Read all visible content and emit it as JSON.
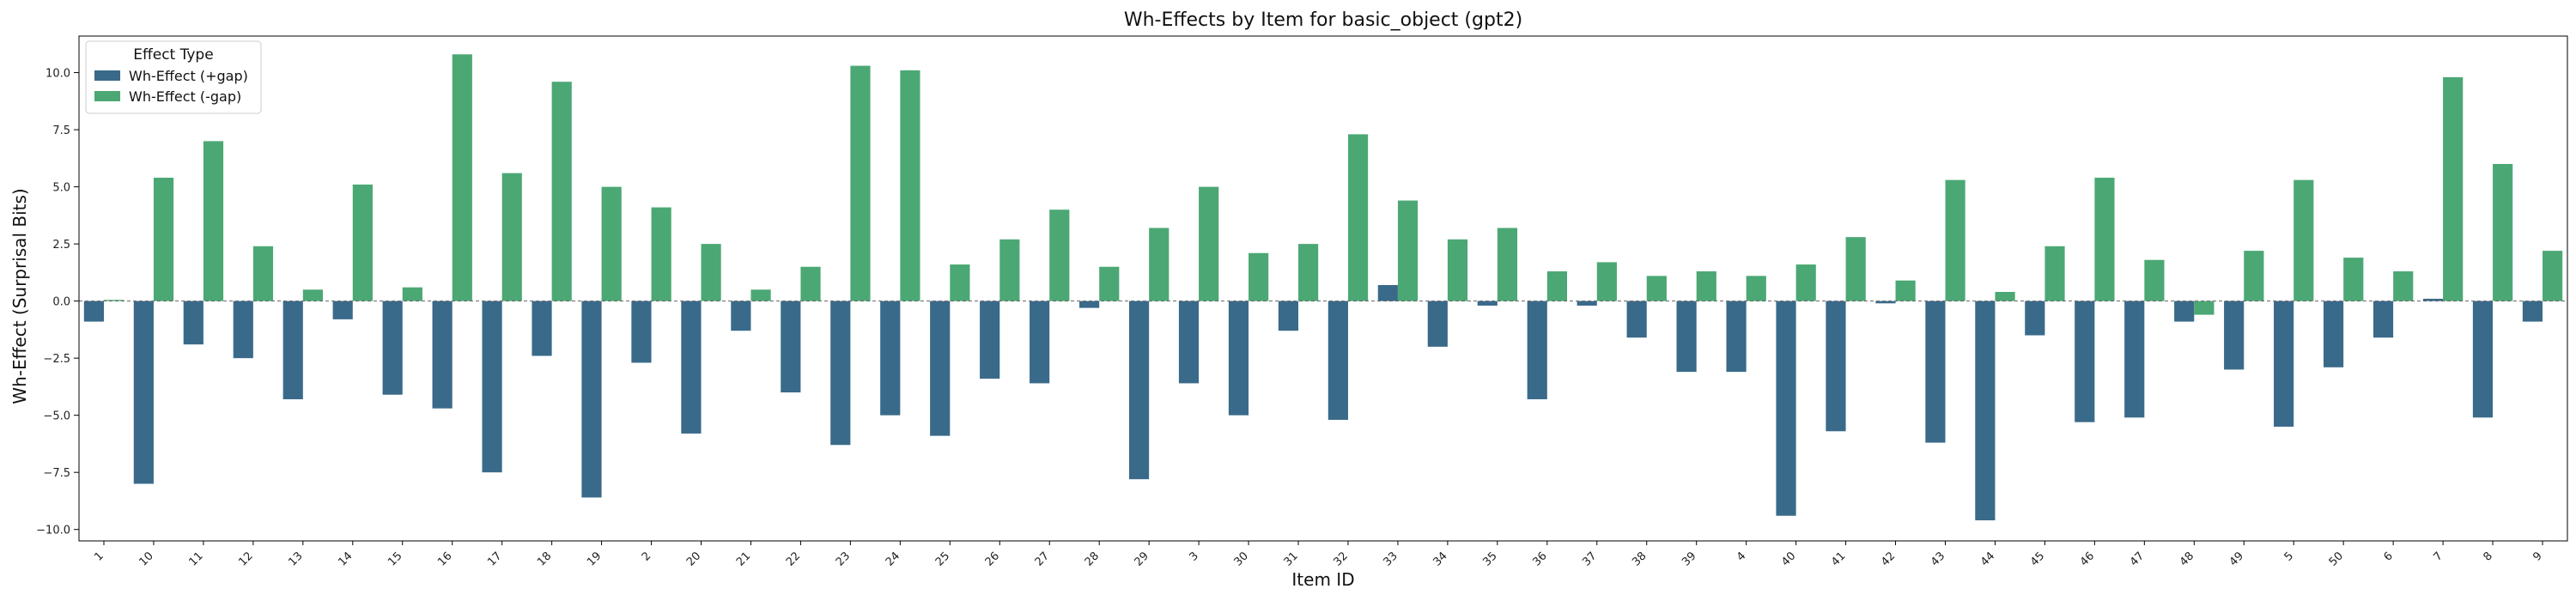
{
  "chart_data": {
    "type": "bar",
    "title": "Wh-Effects by Item for basic_object (gpt2)",
    "xlabel": "Item ID",
    "ylabel": "Wh-Effect (Surprisal Bits)",
    "ylim": [
      -10.5,
      11.6
    ],
    "yticks": [
      -10.0,
      -7.5,
      -5.0,
      -2.5,
      0.0,
      2.5,
      5.0,
      7.5,
      10.0
    ],
    "ytick_labels": [
      "−10.0",
      "−7.5",
      "−5.0",
      "−2.5",
      "0.0",
      "2.5",
      "5.0",
      "7.5",
      "10.0"
    ],
    "grid": false,
    "zero_line": "dashed",
    "legend": {
      "title": "Effect Type",
      "placement": "top-left"
    },
    "categories": [
      "1",
      "10",
      "11",
      "12",
      "13",
      "14",
      "15",
      "16",
      "17",
      "18",
      "19",
      "2",
      "20",
      "21",
      "22",
      "23",
      "24",
      "25",
      "26",
      "27",
      "28",
      "29",
      "3",
      "30",
      "31",
      "32",
      "33",
      "34",
      "35",
      "36",
      "37",
      "38",
      "39",
      "4",
      "40",
      "41",
      "42",
      "43",
      "44",
      "45",
      "46",
      "47",
      "48",
      "49",
      "5",
      "50",
      "6",
      "7",
      "8",
      "9"
    ],
    "series": [
      {
        "name": "Wh-Effect (+gap)",
        "color": "#3a6a8a",
        "values": [
          -0.9,
          -8.0,
          -1.9,
          -2.5,
          -4.3,
          -0.8,
          -4.1,
          -4.7,
          -7.5,
          -2.4,
          -8.6,
          -2.7,
          -5.8,
          -1.3,
          -4.0,
          -6.3,
          -5.0,
          -5.9,
          -3.4,
          -3.6,
          -0.3,
          -7.8,
          -3.6,
          -5.0,
          -1.3,
          -5.2,
          0.7,
          -2.0,
          -0.2,
          -4.3,
          -0.2,
          -1.6,
          -3.1,
          -3.1,
          -9.4,
          -5.7,
          -0.1,
          -6.2,
          -9.6,
          -1.5,
          -5.3,
          -5.1,
          -0.9,
          -3.0,
          -5.5,
          -2.9,
          -1.6,
          0.1,
          -5.1,
          -0.9
        ]
      },
      {
        "name": "Wh-Effect (-gap)",
        "color": "#4ba874",
        "values": [
          0.05,
          5.4,
          7.0,
          2.4,
          0.5,
          5.1,
          0.6,
          10.8,
          5.6,
          9.6,
          5.0,
          4.1,
          2.5,
          0.5,
          1.5,
          10.3,
          10.1,
          1.6,
          2.7,
          4.0,
          1.5,
          3.2,
          5.0,
          2.1,
          2.5,
          7.3,
          4.4,
          2.7,
          3.2,
          1.3,
          1.7,
          1.1,
          1.3,
          1.1,
          1.6,
          2.8,
          0.9,
          5.3,
          0.4,
          2.4,
          5.4,
          1.8,
          -0.6,
          2.2,
          5.3,
          1.9,
          1.3,
          9.8,
          6.0,
          2.2
        ]
      }
    ]
  }
}
